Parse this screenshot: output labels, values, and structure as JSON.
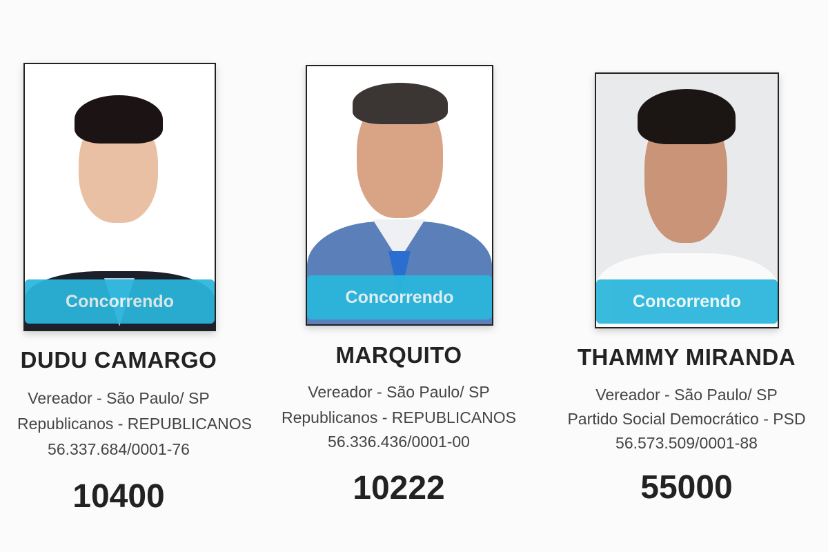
{
  "candidates": [
    {
      "status": "Concorrendo",
      "name": "DUDU CAMARGO",
      "office": "Vereador - São Paulo/ SP",
      "party": "Republicanos - REPUBLICANOS",
      "cnpj": "56.337.684/0001-76",
      "number": "10400"
    },
    {
      "status": "Concorrendo",
      "name": "MARQUITO",
      "office": "Vereador - São Paulo/ SP",
      "party": "Republicanos - REPUBLICANOS",
      "cnpj": "56.336.436/0001-00",
      "number": "10222"
    },
    {
      "status": "Concorrendo",
      "name": "THAMMY MIRANDA",
      "office": "Vereador - São Paulo/ SP",
      "party": "Partido Social Democrático - PSD",
      "cnpj": "56.573.509/0001-88",
      "number": "55000"
    }
  ],
  "colors": {
    "badge": "#2ab6dc",
    "text": "#222222"
  }
}
